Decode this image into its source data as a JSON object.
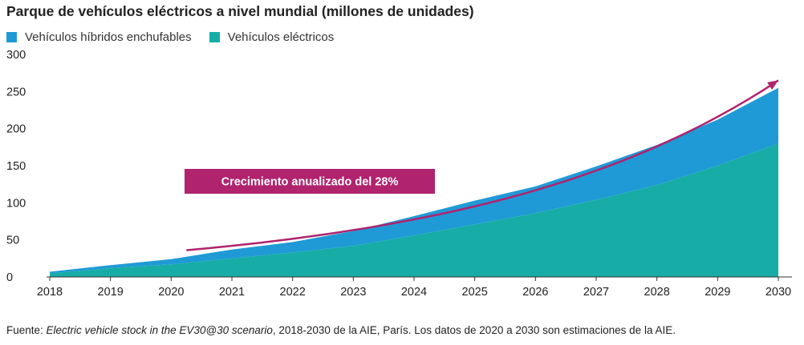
{
  "colors": {
    "phev": "#1f9ad6",
    "bev": "#17ada6",
    "arrow": "#b0236d",
    "axis": "#333333"
  },
  "title": "Parque de vehículos eléctricos a nivel mundial (millones de unidades)",
  "annotation": "Crecimiento anualizado del 28%",
  "source": {
    "prefix": "Fuente: ",
    "italic": "Electric vehicle stock in the EV30@30 scenario",
    "suffix": ", 2018-2030 de la AIE, París. Los datos de 2020 a 2030 son estimaciones de la AIE."
  },
  "chart_data": {
    "type": "area",
    "stacked": true,
    "x": [
      2018,
      2019,
      2020,
      2021,
      2022,
      2023,
      2024,
      2025,
      2026,
      2027,
      2028,
      2029,
      2030
    ],
    "ylim": [
      0,
      300
    ],
    "yticks": [
      0,
      50,
      100,
      150,
      200,
      250,
      300
    ],
    "series": [
      {
        "name": "Vehículos eléctricos",
        "color": "#17ada6",
        "values": [
          5,
          12,
          17,
          25,
          33,
          42,
          56,
          71,
          86,
          104,
          124,
          150,
          180
        ]
      },
      {
        "name": "Vehículos híbridos enchufables",
        "color": "#1f9ad6",
        "values": [
          2,
          4,
          7,
          12,
          14,
          20,
          26,
          32,
          36,
          45,
          54,
          62,
          75
        ]
      }
    ],
    "trend": {
      "label": "Crecimiento anualizado del 28%",
      "start_year": 2020.25,
      "start_value": 36,
      "end_value": 265
    },
    "grid": false,
    "legend_position": "top-left"
  }
}
